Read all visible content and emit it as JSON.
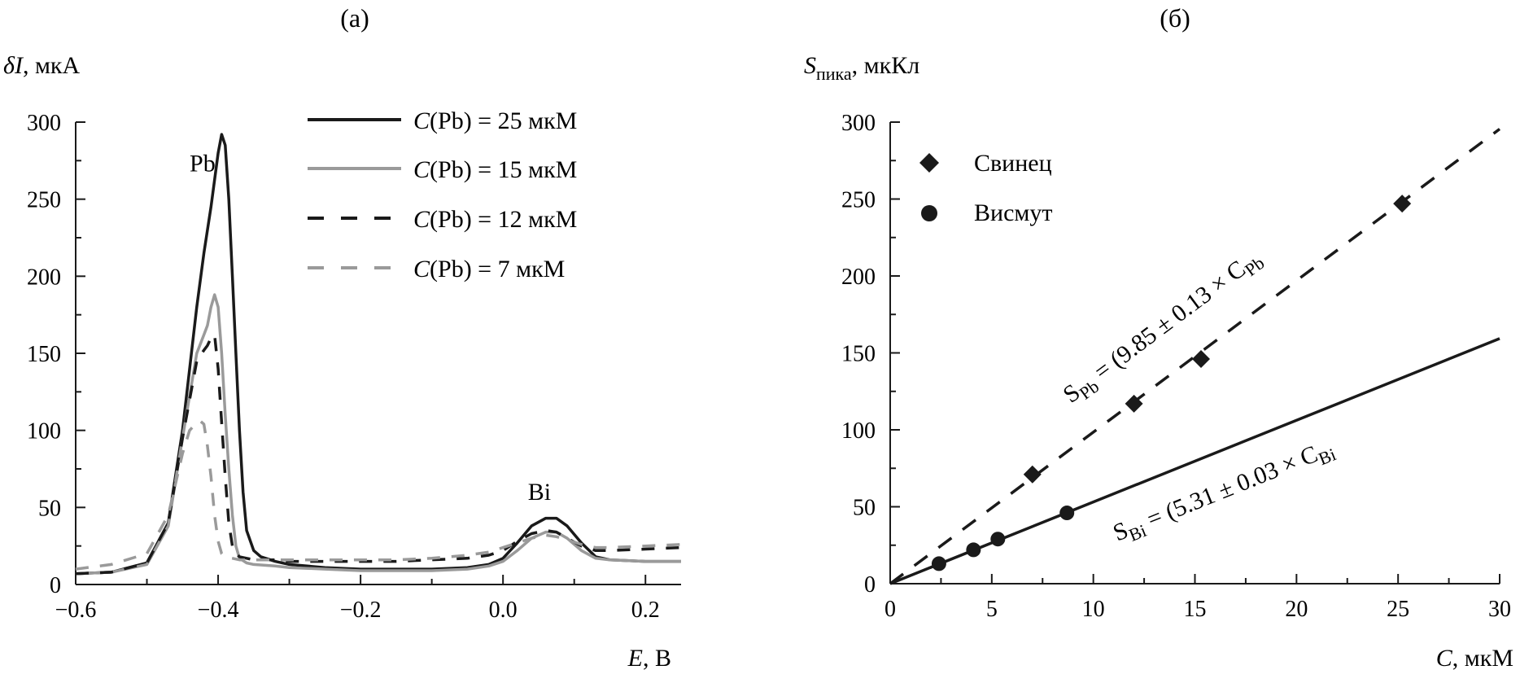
{
  "chart_data": [
    {
      "type": "line",
      "panel_label": "(a)",
      "title": "",
      "xlabel_var": "E",
      "xlabel_unit": ", В",
      "ylabel_var": "δI",
      "ylabel_unit": ", мкА",
      "xlim": [
        -0.6,
        0.25
      ],
      "ylim": [
        0,
        300
      ],
      "x_ticks": [
        -0.6,
        -0.4,
        -0.2,
        0.0,
        0.2
      ],
      "x_tick_labels": [
        "−0.6",
        "−0.4",
        "−0.2",
        "0.0",
        "0.2"
      ],
      "x_minor_ticks": [
        -0.5,
        -0.3,
        -0.1,
        0.1
      ],
      "y_ticks": [
        0,
        50,
        100,
        150,
        200,
        250,
        300
      ],
      "y_tick_labels": [
        "0",
        "50",
        "100",
        "150",
        "200",
        "250",
        "300"
      ],
      "y_minor_ticks": [
        25,
        75,
        125,
        175,
        225,
        275
      ],
      "grid": false,
      "legend_position": "top-right",
      "annotations": [
        {
          "text": "Pb",
          "x": -0.44,
          "y": 268
        },
        {
          "text": "Bi",
          "x": 0.035,
          "y": 55
        }
      ],
      "series": [
        {
          "name_var": "C",
          "name_rest": "(Pb) = 25 мкМ",
          "color": "#1a1a1a",
          "dash": "solid",
          "x": [
            -0.6,
            -0.55,
            -0.5,
            -0.47,
            -0.45,
            -0.43,
            -0.42,
            -0.41,
            -0.4,
            -0.395,
            -0.39,
            -0.385,
            -0.38,
            -0.375,
            -0.37,
            -0.365,
            -0.36,
            -0.35,
            -0.34,
            -0.32,
            -0.3,
            -0.25,
            -0.2,
            -0.15,
            -0.1,
            -0.05,
            -0.02,
            0.0,
            0.02,
            0.04,
            0.06,
            0.075,
            0.09,
            0.11,
            0.13,
            0.15,
            0.2,
            0.25
          ],
          "y": [
            7,
            8,
            14,
            40,
            100,
            180,
            215,
            245,
            280,
            292,
            285,
            250,
            200,
            150,
            100,
            60,
            35,
            22,
            18,
            15,
            13,
            11,
            10,
            10,
            10,
            11,
            13,
            17,
            27,
            38,
            43,
            43,
            38,
            27,
            18,
            16,
            15,
            15
          ]
        },
        {
          "name_var": "C",
          "name_rest": "(Pb) = 15 мкМ",
          "color": "#9a9a9a",
          "dash": "solid",
          "x": [
            -0.6,
            -0.55,
            -0.5,
            -0.47,
            -0.45,
            -0.43,
            -0.42,
            -0.415,
            -0.41,
            -0.405,
            -0.4,
            -0.395,
            -0.39,
            -0.385,
            -0.38,
            -0.375,
            -0.37,
            -0.36,
            -0.35,
            -0.32,
            -0.3,
            -0.25,
            -0.2,
            -0.15,
            -0.1,
            -0.05,
            -0.02,
            0.0,
            0.02,
            0.04,
            0.06,
            0.075,
            0.09,
            0.11,
            0.13,
            0.15,
            0.2,
            0.25
          ],
          "y": [
            7,
            8,
            13,
            38,
            95,
            150,
            162,
            168,
            180,
            188,
            180,
            150,
            110,
            75,
            45,
            25,
            17,
            14,
            13,
            12,
            11,
            10,
            9,
            9,
            9,
            10,
            12,
            15,
            22,
            30,
            34,
            34,
            30,
            22,
            17,
            16,
            15,
            15
          ]
        },
        {
          "name_var": "C",
          "name_rest": "(Pb) = 12 мкМ",
          "color": "#1a1a1a",
          "dash": "dashed",
          "x": [
            -0.6,
            -0.55,
            -0.5,
            -0.47,
            -0.45,
            -0.43,
            -0.42,
            -0.415,
            -0.41,
            -0.405,
            -0.4,
            -0.395,
            -0.39,
            -0.385,
            -0.38,
            -0.375,
            -0.37,
            -0.36,
            -0.35,
            -0.32,
            -0.3,
            -0.25,
            -0.2,
            -0.15,
            -0.1,
            -0.05,
            -0.02,
            0.0,
            0.02,
            0.04,
            0.06,
            0.075,
            0.09,
            0.11,
            0.13,
            0.15,
            0.2,
            0.25
          ],
          "y": [
            7,
            8,
            14,
            40,
            95,
            145,
            152,
            155,
            160,
            162,
            140,
            105,
            70,
            40,
            25,
            20,
            18,
            17,
            16,
            16,
            15,
            15,
            15,
            15,
            16,
            17,
            19,
            22,
            28,
            33,
            35,
            34,
            30,
            25,
            22,
            22,
            23,
            24
          ]
        },
        {
          "name_var": "C",
          "name_rest": "(Pb) = 7 мкМ",
          "color": "#9a9a9a",
          "dash": "dashed",
          "x": [
            -0.6,
            -0.55,
            -0.5,
            -0.47,
            -0.45,
            -0.44,
            -0.43,
            -0.425,
            -0.42,
            -0.415,
            -0.41,
            -0.405,
            -0.4,
            -0.395,
            -0.39,
            -0.38,
            -0.37,
            -0.35,
            -0.32,
            -0.3,
            -0.25,
            -0.2,
            -0.15,
            -0.1,
            -0.05,
            -0.02,
            0.0,
            0.02,
            0.04,
            0.06,
            0.075,
            0.09,
            0.11,
            0.13,
            0.15,
            0.2,
            0.25
          ],
          "y": [
            10,
            13,
            20,
            45,
            85,
            100,
            105,
            106,
            104,
            90,
            70,
            45,
            28,
            20,
            18,
            17,
            16,
            16,
            16,
            16,
            16,
            16,
            16,
            17,
            19,
            21,
            24,
            27,
            30,
            32,
            31,
            29,
            26,
            24,
            24,
            25,
            26
          ]
        }
      ]
    },
    {
      "type": "scatter",
      "panel_label": "(б)",
      "title": "",
      "xlabel_var": "C",
      "xlabel_unit": ", мкМ",
      "ylabel_var": "S",
      "ylabel_sub": "пика",
      "ylabel_unit": ", мкКл",
      "xlim": [
        0,
        30
      ],
      "ylim": [
        0,
        300
      ],
      "x_ticks": [
        0,
        5,
        10,
        15,
        20,
        25,
        30
      ],
      "x_tick_labels": [
        "0",
        "5",
        "10",
        "15",
        "20",
        "25",
        "30"
      ],
      "x_minor_ticks": [
        2.5,
        7.5,
        12.5,
        17.5,
        22.5,
        27.5
      ],
      "y_ticks": [
        0,
        50,
        100,
        150,
        200,
        250,
        300
      ],
      "y_tick_labels": [
        "0",
        "50",
        "100",
        "150",
        "200",
        "250",
        "300"
      ],
      "y_minor_ticks": [
        25,
        75,
        125,
        175,
        225,
        275
      ],
      "grid": false,
      "legend_position": "top-left",
      "series": [
        {
          "name": "Свинец",
          "marker": "diamond",
          "color": "#1a1a1a",
          "x": [
            7.0,
            12.0,
            15.3,
            25.2
          ],
          "y": [
            71,
            117,
            146,
            247
          ],
          "fit": {
            "slope": 9.85,
            "intercept": 0,
            "dash": "dashed",
            "x_range": [
              0,
              30
            ]
          },
          "equation": {
            "S": "S",
            "sub1": "Pb",
            "body": " = (9.85 ± 0.13 × C",
            "sub2": "Pb"
          }
        },
        {
          "name": "Висмут",
          "marker": "circle",
          "color": "#1a1a1a",
          "x": [
            2.4,
            4.1,
            5.3,
            8.7
          ],
          "y": [
            13,
            22,
            29,
            46
          ],
          "fit": {
            "slope": 5.31,
            "intercept": 0,
            "dash": "solid",
            "x_range": [
              0,
              30
            ]
          },
          "equation": {
            "S": "S",
            "sub1": "Bi",
            "body": " = (5.31 ± 0.03 × C",
            "sub2": "Bi"
          }
        }
      ]
    }
  ]
}
